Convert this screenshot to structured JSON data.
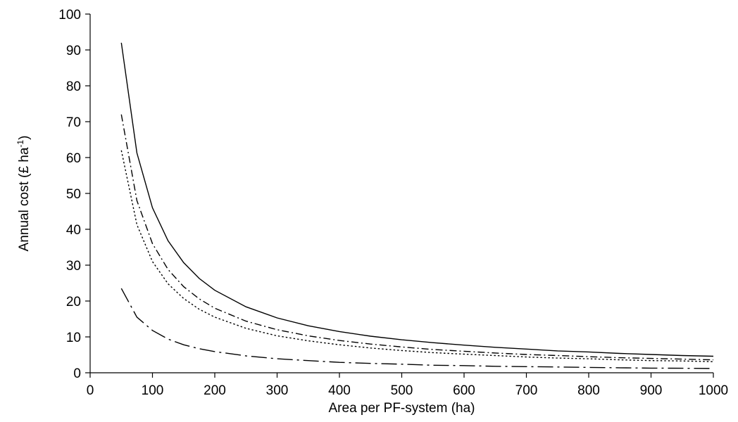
{
  "chart_data": {
    "type": "line",
    "title": "",
    "xlabel": "Area per PF-system (ha)",
    "ylabel": {
      "main": "Annual cost (£ ha",
      "sup": "-1",
      "close": ")"
    },
    "xlim": [
      0,
      1000
    ],
    "ylim": [
      0,
      100
    ],
    "xticks": [
      0,
      100,
      200,
      300,
      400,
      500,
      600,
      700,
      800,
      900,
      1000
    ],
    "yticks": [
      0,
      10,
      20,
      30,
      40,
      50,
      60,
      70,
      80,
      90,
      100
    ],
    "grid": false,
    "legend": "none",
    "x": [
      50,
      75,
      100,
      125,
      150,
      175,
      200,
      250,
      300,
      350,
      400,
      450,
      500,
      550,
      600,
      650,
      700,
      750,
      800,
      850,
      900,
      950,
      1000
    ],
    "series": [
      {
        "style": "solid",
        "values": [
          92,
          61.3,
          46,
          36.8,
          30.7,
          26.3,
          23,
          18.4,
          15.3,
          13.1,
          11.5,
          10.2,
          9.2,
          8.4,
          7.7,
          7.1,
          6.6,
          6.1,
          5.8,
          5.4,
          5.1,
          4.8,
          4.6
        ]
      },
      {
        "style": "dashdot",
        "values": [
          72,
          48,
          36,
          28.8,
          24,
          20.6,
          18,
          14.4,
          12,
          10.3,
          9,
          8,
          7.2,
          6.5,
          6,
          5.5,
          5.1,
          4.8,
          4.5,
          4.2,
          4,
          3.8,
          3.6
        ]
      },
      {
        "style": "dotted",
        "values": [
          62,
          41.3,
          31,
          24.8,
          20.7,
          17.7,
          15.5,
          12.4,
          10.3,
          8.9,
          7.8,
          6.9,
          6.2,
          5.6,
          5.2,
          4.8,
          4.4,
          4.1,
          3.9,
          3.6,
          3.4,
          3.3,
          3.1
        ]
      },
      {
        "style": "longdash-dot",
        "values": [
          23.5,
          15.5,
          11.8,
          9.4,
          7.8,
          6.7,
          5.9,
          4.7,
          3.9,
          3.4,
          2.9,
          2.6,
          2.4,
          2.1,
          2.0,
          1.8,
          1.7,
          1.6,
          1.5,
          1.4,
          1.3,
          1.25,
          1.2
        ]
      }
    ]
  }
}
